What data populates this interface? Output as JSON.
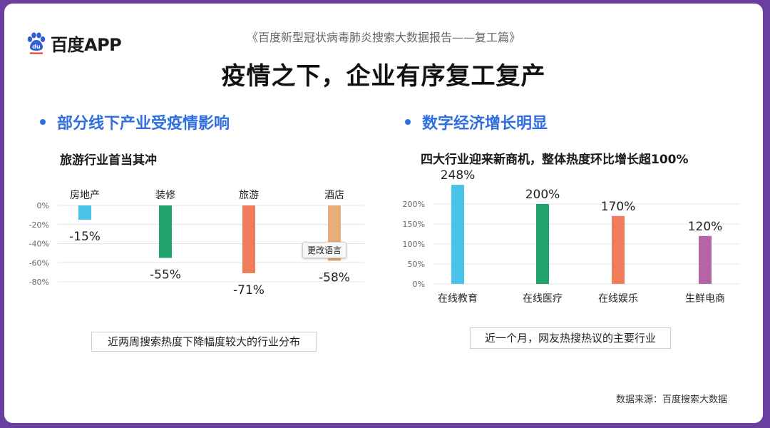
{
  "brand": {
    "logo_text": "百度APP",
    "paw_letters": "du"
  },
  "report_title": "《百度新型冠状病毒肺炎搜索大数据报告——复工篇》",
  "main_title": "疫情之下，企业有序复工复产",
  "left": {
    "heading": "部分线下产业受疫情影响",
    "subheading": "旅游行业首当其冲",
    "caption": "近两周搜索热度下降幅度较大的行业分布",
    "tooltip": "更改语言"
  },
  "right": {
    "heading": "数字经济增长明显",
    "subheading": "四大行业迎来新商机，整体热度环比增长超100%",
    "caption": "近一个月，网友热搜热议的主要行业"
  },
  "source": "数据来源：百度搜索大数据",
  "colors": {
    "accent": "#2f6fdf",
    "background": "#6a3fa0"
  },
  "chart_data": [
    {
      "type": "bar",
      "categories": [
        "房地产",
        "装修",
        "旅游",
        "酒店"
      ],
      "values": [
        -15,
        -55,
        -71,
        -58
      ],
      "value_labels": [
        "-15%",
        "-55%",
        "-71%",
        "-58%"
      ],
      "colors": [
        "#4ac3ea",
        "#21a36b",
        "#ee7d5b",
        "#e8ad78"
      ],
      "yticks": [
        "0%",
        "-20%",
        "-40%",
        "-60%",
        "-80%"
      ],
      "ylim": [
        -80,
        0
      ],
      "grid": true
    },
    {
      "type": "bar",
      "categories": [
        "在线教育",
        "在线医疗",
        "在线娱乐",
        "生鲜电商"
      ],
      "values": [
        248,
        200,
        170,
        120
      ],
      "value_labels": [
        "248%",
        "200%",
        "170%",
        "120%"
      ],
      "colors": [
        "#4ac3ea",
        "#21a36b",
        "#ee7d5b",
        "#b565a5"
      ],
      "yticks": [
        "0%",
        "50%",
        "100%",
        "150%",
        "200%"
      ],
      "ylim": [
        0,
        250
      ],
      "grid": true
    }
  ]
}
